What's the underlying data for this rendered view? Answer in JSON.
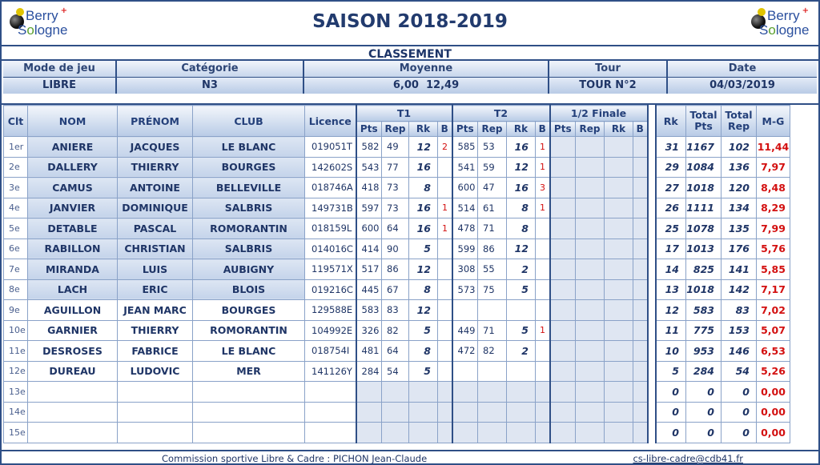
{
  "header": {
    "title": "SAISON 2018-2019",
    "subtitle": "CLASSEMENT",
    "logo_word1": "Berry",
    "logo_word2_a": "S",
    "logo_word2_b": "o",
    "logo_word2_c": "logne"
  },
  "info": {
    "labels": [
      "Mode de jeu",
      "Catégorie",
      "Moyenne",
      "Tour",
      "Date"
    ],
    "values": [
      "LIBRE",
      "N3",
      "6,00  12,49",
      "TOUR N°2",
      "04/03/2019"
    ]
  },
  "table": {
    "headers": {
      "clt": "Clt",
      "nom": "NOM",
      "prenom": "PRÉNOM",
      "club": "CLUB",
      "licence": "Licence",
      "t1": "T1",
      "t2": "T2",
      "finale": "1/2 Finale",
      "pts": "Pts",
      "rep": "Rep",
      "rk": "Rk",
      "b": "B",
      "rk_total": "Rk",
      "total_pts": "Total Pts",
      "total_rep": "Total Rep",
      "mg": "M-G"
    },
    "rows": [
      {
        "clt": "1er",
        "nom": "ANIERE",
        "prenom": "JACQUES",
        "club": "LE BLANC",
        "licence": "019051T",
        "t1_pts": "582",
        "t1_rep": "49",
        "t1_rk": "12",
        "t1_b": "2",
        "t2_pts": "585",
        "t2_rep": "53",
        "t2_rk": "16",
        "t2_b": "1",
        "rk": "31",
        "total_pts": "1167",
        "total_rep": "102",
        "mg": "11,44",
        "shaded": true
      },
      {
        "clt": "2e",
        "nom": "DALLERY",
        "prenom": "THIERRY",
        "club": "BOURGES",
        "licence": "142602S",
        "t1_pts": "543",
        "t1_rep": "77",
        "t1_rk": "16",
        "t1_b": "",
        "t2_pts": "541",
        "t2_rep": "59",
        "t2_rk": "12",
        "t2_b": "1",
        "rk": "29",
        "total_pts": "1084",
        "total_rep": "136",
        "mg": "7,97",
        "shaded": true
      },
      {
        "clt": "3e",
        "nom": "CAMUS",
        "prenom": "ANTOINE",
        "club": "BELLEVILLE",
        "licence": "018746A",
        "t1_pts": "418",
        "t1_rep": "73",
        "t1_rk": "8",
        "t1_b": "",
        "t2_pts": "600",
        "t2_rep": "47",
        "t2_rk": "16",
        "t2_b": "3",
        "rk": "27",
        "total_pts": "1018",
        "total_rep": "120",
        "mg": "8,48",
        "shaded": true
      },
      {
        "clt": "4e",
        "nom": "JANVIER",
        "prenom": "DOMINIQUE",
        "club": "SALBRIS",
        "licence": "149731B",
        "t1_pts": "597",
        "t1_rep": "73",
        "t1_rk": "16",
        "t1_b": "1",
        "t2_pts": "514",
        "t2_rep": "61",
        "t2_rk": "8",
        "t2_b": "1",
        "rk": "26",
        "total_pts": "1111",
        "total_rep": "134",
        "mg": "8,29",
        "shaded": true
      },
      {
        "clt": "5e",
        "nom": "DETABLE",
        "prenom": "PASCAL",
        "club": "ROMORANTIN",
        "licence": "018159L",
        "t1_pts": "600",
        "t1_rep": "64",
        "t1_rk": "16",
        "t1_b": "1",
        "t2_pts": "478",
        "t2_rep": "71",
        "t2_rk": "8",
        "t2_b": "",
        "rk": "25",
        "total_pts": "1078",
        "total_rep": "135",
        "mg": "7,99",
        "shaded": true
      },
      {
        "clt": "6e",
        "nom": "RABILLON",
        "prenom": "CHRISTIAN",
        "club": "SALBRIS",
        "licence": "014016C",
        "t1_pts": "414",
        "t1_rep": "90",
        "t1_rk": "5",
        "t1_b": "",
        "t2_pts": "599",
        "t2_rep": "86",
        "t2_rk": "12",
        "t2_b": "",
        "rk": "17",
        "total_pts": "1013",
        "total_rep": "176",
        "mg": "5,76",
        "shaded": true
      },
      {
        "clt": "7e",
        "nom": "MIRANDA",
        "prenom": "LUIS",
        "club": "AUBIGNY",
        "licence": "119571X",
        "t1_pts": "517",
        "t1_rep": "86",
        "t1_rk": "12",
        "t1_b": "",
        "t2_pts": "308",
        "t2_rep": "55",
        "t2_rk": "2",
        "t2_b": "",
        "rk": "14",
        "total_pts": "825",
        "total_rep": "141",
        "mg": "5,85",
        "shaded": true
      },
      {
        "clt": "8e",
        "nom": "LACH",
        "prenom": "ERIC",
        "club": "BLOIS",
        "licence": "019216C",
        "t1_pts": "445",
        "t1_rep": "67",
        "t1_rk": "8",
        "t1_b": "",
        "t2_pts": "573",
        "t2_rep": "75",
        "t2_rk": "5",
        "t2_b": "",
        "rk": "13",
        "total_pts": "1018",
        "total_rep": "142",
        "mg": "7,17",
        "shaded": true
      },
      {
        "clt": "9e",
        "nom": "AGUILLON",
        "prenom": "JEAN MARC",
        "club": "BOURGES",
        "licence": "129588E",
        "t1_pts": "583",
        "t1_rep": "83",
        "t1_rk": "12",
        "t1_b": "",
        "t2_pts": "",
        "t2_rep": "",
        "t2_rk": "",
        "t2_b": "",
        "rk": "12",
        "total_pts": "583",
        "total_rep": "83",
        "mg": "7,02",
        "shaded": false
      },
      {
        "clt": "10e",
        "nom": "GARNIER",
        "prenom": "THIERRY",
        "club": "ROMORANTIN",
        "licence": "104992E",
        "t1_pts": "326",
        "t1_rep": "82",
        "t1_rk": "5",
        "t1_b": "",
        "t2_pts": "449",
        "t2_rep": "71",
        "t2_rk": "5",
        "t2_b": "1",
        "rk": "11",
        "total_pts": "775",
        "total_rep": "153",
        "mg": "5,07",
        "shaded": false
      },
      {
        "clt": "11e",
        "nom": "DESROSES",
        "prenom": "FABRICE",
        "club": "LE BLANC",
        "licence": "018754I",
        "t1_pts": "481",
        "t1_rep": "64",
        "t1_rk": "8",
        "t1_b": "",
        "t2_pts": "472",
        "t2_rep": "82",
        "t2_rk": "2",
        "t2_b": "",
        "rk": "10",
        "total_pts": "953",
        "total_rep": "146",
        "mg": "6,53",
        "shaded": false
      },
      {
        "clt": "12e",
        "nom": "DUREAU",
        "prenom": "LUDOVIC",
        "club": "MER",
        "licence": "141126Y",
        "t1_pts": "284",
        "t1_rep": "54",
        "t1_rk": "5",
        "t1_b": "",
        "t2_pts": "",
        "t2_rep": "",
        "t2_rk": "",
        "t2_b": "",
        "rk": "5",
        "total_pts": "284",
        "total_rep": "54",
        "mg": "5,26",
        "shaded": false
      },
      {
        "clt": "13e",
        "nom": "",
        "prenom": "",
        "club": "",
        "licence": "",
        "t1_pts": "",
        "t1_rep": "",
        "t1_rk": "",
        "t1_b": "",
        "t2_pts": "",
        "t2_rep": "",
        "t2_rk": "",
        "t2_b": "",
        "rk": "0",
        "total_pts": "0",
        "total_rep": "0",
        "mg": "0,00",
        "shaded": false
      },
      {
        "clt": "14e",
        "nom": "",
        "prenom": "",
        "club": "",
        "licence": "",
        "t1_pts": "",
        "t1_rep": "",
        "t1_rk": "",
        "t1_b": "",
        "t2_pts": "",
        "t2_rep": "",
        "t2_rk": "",
        "t2_b": "",
        "rk": "0",
        "total_pts": "0",
        "total_rep": "0",
        "mg": "0,00",
        "shaded": false
      },
      {
        "clt": "15e",
        "nom": "",
        "prenom": "",
        "club": "",
        "licence": "",
        "t1_pts": "",
        "t1_rep": "",
        "t1_rk": "",
        "t1_b": "",
        "t2_pts": "",
        "t2_rep": "",
        "t2_rk": "",
        "t2_b": "",
        "rk": "0",
        "total_pts": "0",
        "total_rep": "0",
        "mg": "0,00",
        "shaded": false
      }
    ]
  },
  "footer": {
    "commission": "Commission sportive Libre & Cadre : PICHON Jean-Claude",
    "email": "cs-libre-cadre@cdb41.fr"
  },
  "colors": {
    "border": "#2f4f86",
    "title": "#223b6e",
    "red": "#d31010"
  }
}
